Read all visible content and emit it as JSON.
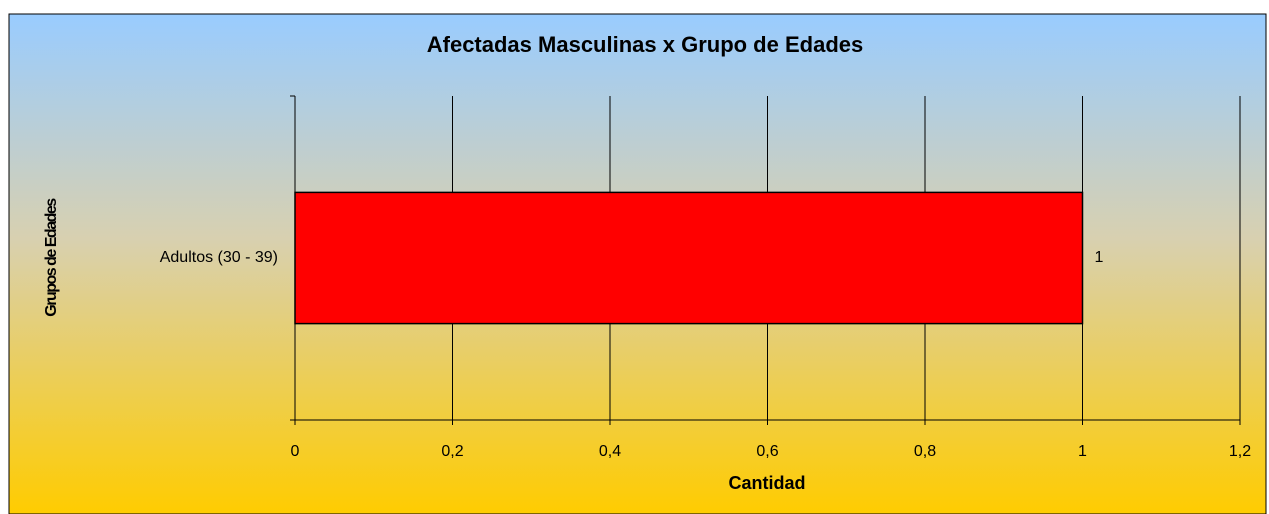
{
  "chart_data": {
    "type": "bar",
    "orientation": "horizontal",
    "title": "Afectadas Masculinas x Grupo de Edades",
    "x_label": "Cantidad",
    "y_label": "Grupos de Edades",
    "categories": [
      "Adultos (30 - 39)"
    ],
    "values": [
      1
    ],
    "color": "#ff0000",
    "xlim": [
      0,
      1.2
    ],
    "xticks": [
      0,
      {
        "value": 0.2,
        "label": "0,2"
      },
      {
        "value": 0.4,
        "label": "0,4"
      },
      {
        "value": 0.6,
        "label": "0,6"
      },
      {
        "value": 0.8,
        "label": "0,8"
      },
      1,
      {
        "value": 1.2,
        "label": "1,2"
      }
    ],
    "grid": true
  }
}
